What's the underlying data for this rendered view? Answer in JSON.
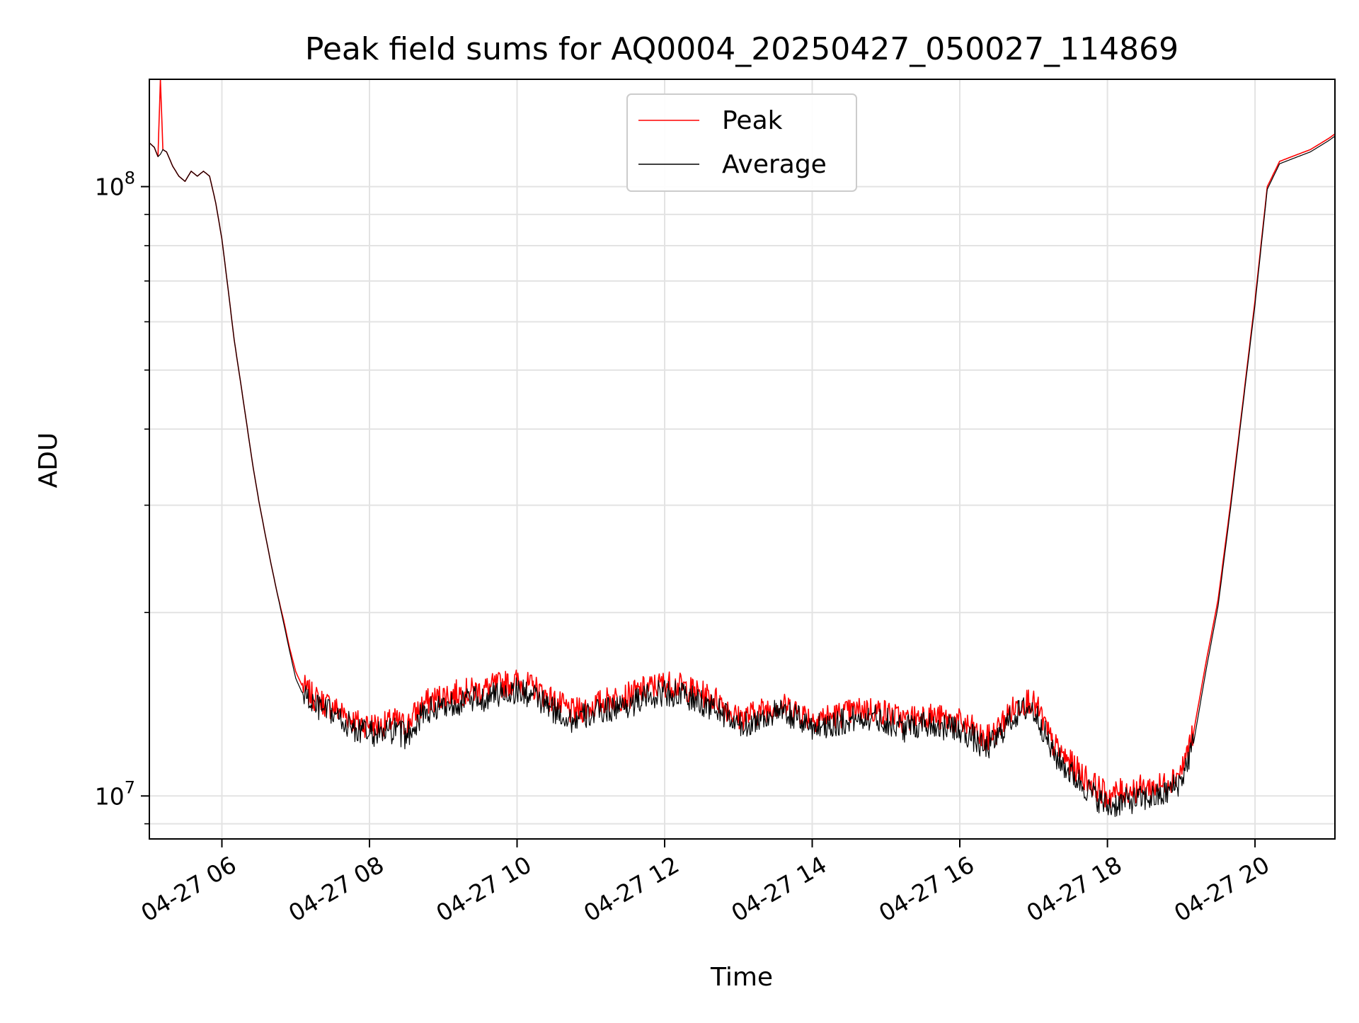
{
  "chart_data": {
    "type": "line",
    "title": "Peak field sums for AQ0004_20250427_050027_114869",
    "xlabel": "Time",
    "ylabel": "ADU",
    "x_scale": "time",
    "y_scale": "log",
    "xlim": [
      "04-27 05:01",
      "04-27 21:05"
    ],
    "ylim": [
      8500000,
      150000000
    ],
    "grid": true,
    "legend_position": "upper-center",
    "x_ticks": [
      "04-27 06",
      "04-27 08",
      "04-27 10",
      "04-27 12",
      "04-27 14",
      "04-27 16",
      "04-27 18",
      "04-27 20"
    ],
    "y_ticks": [
      {
        "value": 10000000,
        "label": "10^7"
      },
      {
        "value": 100000000,
        "label": "10^8"
      }
    ],
    "x": [
      "04-27 05:01",
      "04-27 05:05",
      "04-27 05:08",
      "04-27 05:10",
      "04-27 05:12",
      "04-27 05:15",
      "04-27 05:20",
      "04-27 05:25",
      "04-27 05:30",
      "04-27 05:35",
      "04-27 05:40",
      "04-27 05:45",
      "04-27 05:50",
      "04-27 05:55",
      "04-27 06:00",
      "04-27 06:05",
      "04-27 06:10",
      "04-27 06:15",
      "04-27 06:20",
      "04-27 06:25",
      "04-27 06:30",
      "04-27 06:35",
      "04-27 06:40",
      "04-27 06:45",
      "04-27 06:50",
      "04-27 06:55",
      "04-27 07:00",
      "04-27 07:05",
      "04-27 07:10",
      "04-27 07:15",
      "04-27 07:20",
      "04-27 07:30",
      "04-27 07:40",
      "04-27 07:50",
      "04-27 08:00",
      "04-27 08:10",
      "04-27 08:20",
      "04-27 08:30",
      "04-27 08:35",
      "04-27 08:45",
      "04-27 09:00",
      "04-27 09:15",
      "04-27 09:30",
      "04-27 09:45",
      "04-27 10:00",
      "04-27 10:15",
      "04-27 10:30",
      "04-27 10:45",
      "04-27 11:00",
      "04-27 11:15",
      "04-27 11:30",
      "04-27 11:45",
      "04-27 12:00",
      "04-27 12:15",
      "04-27 12:30",
      "04-27 12:45",
      "04-27 13:00",
      "04-27 13:15",
      "04-27 13:30",
      "04-27 13:45",
      "04-27 14:00",
      "04-27 14:15",
      "04-27 14:30",
      "04-27 14:45",
      "04-27 15:00",
      "04-27 15:15",
      "04-27 15:30",
      "04-27 15:45",
      "04-27 16:00",
      "04-27 16:10",
      "04-27 16:20",
      "04-27 16:30",
      "04-27 16:40",
      "04-27 16:50",
      "04-27 16:57",
      "04-27 17:05",
      "04-27 17:15",
      "04-27 17:30",
      "04-27 17:45",
      "04-27 18:00",
      "04-27 18:15",
      "04-27 18:30",
      "04-27 18:45",
      "04-27 19:00",
      "04-27 19:10",
      "04-27 19:20",
      "04-27 19:30",
      "04-27 19:40",
      "04-27 19:50",
      "04-27 20:00",
      "04-27 20:10",
      "04-27 20:20",
      "04-27 20:30",
      "04-27 20:45",
      "04-27 21:00",
      "04-27 21:05"
    ],
    "series": [
      {
        "name": "Peak",
        "color": "#ff0000",
        "values": [
          118000000,
          116000000,
          112000000,
          150000000,
          115000000,
          114000000,
          108000000,
          104000000,
          102000000,
          106000000,
          104000000,
          106000000,
          104000000,
          94000000,
          82000000,
          68000000,
          56000000,
          48000000,
          41000000,
          35000000,
          30500000,
          27000000,
          24000000,
          21500000,
          19500000,
          17500000,
          16000000,
          15200000,
          14800000,
          14500000,
          14300000,
          14000000,
          13600000,
          13200000,
          13100000,
          13000000,
          13300000,
          13000000,
          13500000,
          14200000,
          14600000,
          14800000,
          14900000,
          15200000,
          15400000,
          15000000,
          14300000,
          13700000,
          14000000,
          14400000,
          14600000,
          15000000,
          15300000,
          15100000,
          14700000,
          14300000,
          13400000,
          13700000,
          14100000,
          13900000,
          13400000,
          13500000,
          13700000,
          13900000,
          13700000,
          13300000,
          13600000,
          13400000,
          13200000,
          12900000,
          12300000,
          12800000,
          13700000,
          14200000,
          14400000,
          13700000,
          12200000,
          11300000,
          10600000,
          10000000,
          10200000,
          10300000,
          10400000,
          11000000,
          12700000,
          16500000,
          21000000,
          30000000,
          44000000,
          65000000,
          100000000,
          110000000,
          112000000,
          115000000,
          120000000,
          122000000
        ]
      },
      {
        "name": "Average",
        "color": "#000000",
        "values": [
          118000000,
          116000000,
          112000000,
          113000000,
          115000000,
          114000000,
          108000000,
          104000000,
          102000000,
          106000000,
          104000000,
          106000000,
          104000000,
          94000000,
          82000000,
          68000000,
          56000000,
          48000000,
          41000000,
          35000000,
          30500000,
          27000000,
          24000000,
          21500000,
          19300000,
          17300000,
          15600000,
          14800000,
          14400000,
          14100000,
          13900000,
          13600000,
          13200000,
          12800000,
          12700000,
          12600000,
          12800000,
          12500000,
          13000000,
          13700000,
          14100000,
          14300000,
          14400000,
          14700000,
          14900000,
          14500000,
          13800000,
          13300000,
          13600000,
          13900000,
          14100000,
          14500000,
          14800000,
          14600000,
          14200000,
          13800000,
          13000000,
          13300000,
          13700000,
          13500000,
          13000000,
          13100000,
          13300000,
          13500000,
          13300000,
          12900000,
          13200000,
          13000000,
          12800000,
          12500000,
          11900000,
          12400000,
          13300000,
          13800000,
          14000000,
          13300000,
          11800000,
          10900000,
          10200000,
          9600000,
          9800000,
          9900000,
          10000000,
          10600000,
          12200000,
          16000000,
          20500000,
          29500000,
          43500000,
          64000000,
          99000000,
          109000000,
          111000000,
          114000000,
          119000000,
          121000000
        ]
      }
    ]
  }
}
